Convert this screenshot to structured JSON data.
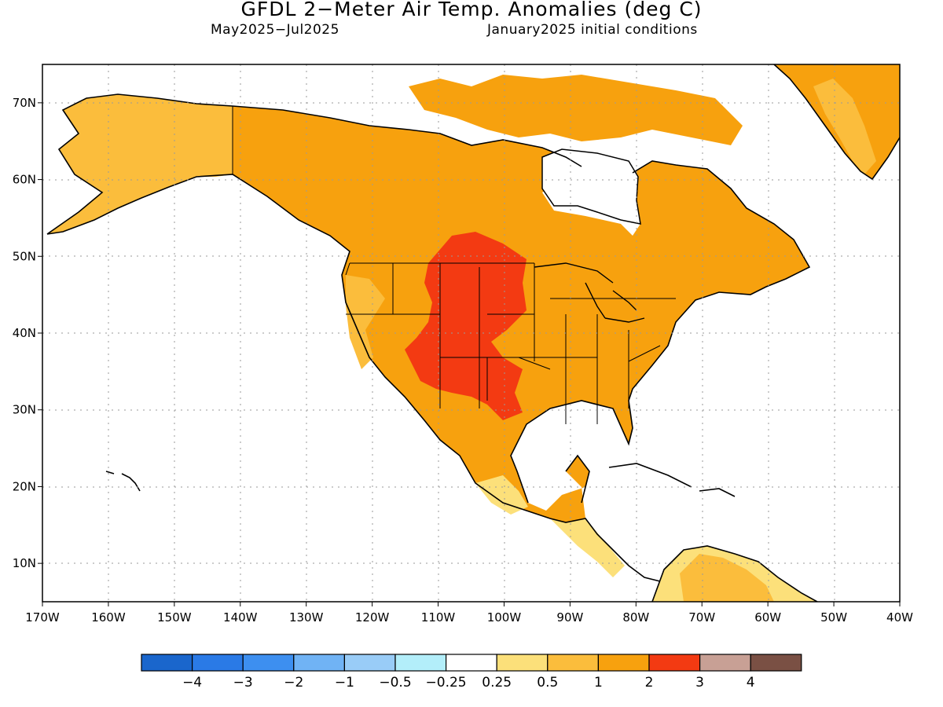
{
  "title": "GFDL 2−Meter Air Temp. Anomalies (deg C)",
  "subtitle_left": "May2025−Jul2025",
  "subtitle_right": "January2025 initial conditions",
  "lat_labels": [
    "70N",
    "60N",
    "50N",
    "40N",
    "30N",
    "20N",
    "10N"
  ],
  "lat_values": [
    70,
    60,
    50,
    40,
    30,
    20,
    10
  ],
  "lon_labels": [
    "170W",
    "160W",
    "150W",
    "140W",
    "130W",
    "120W",
    "110W",
    "100W",
    "90W",
    "80W",
    "70W",
    "60W",
    "50W",
    "40W"
  ],
  "lon_values": [
    -170,
    -160,
    -150,
    -140,
    -130,
    -120,
    -110,
    -100,
    -90,
    -80,
    -70,
    -60,
    -50,
    -40
  ],
  "map_extent": {
    "lon": [
      -170,
      -40
    ],
    "lat": [
      5,
      75
    ]
  },
  "colorbar": {
    "colors": [
      "#1a66cc",
      "#2a7ae6",
      "#3d8ff0",
      "#70b3f5",
      "#99ccf7",
      "#b3eefa",
      "#ffffff",
      "#fce07a",
      "#fbbd3c",
      "#f7a10e",
      "#f33a12",
      "#c8a095",
      "#7a5044"
    ],
    "labels": [
      "−4",
      "−3",
      "−2",
      "−1",
      "−0.5",
      "−0.25",
      "0.25",
      "0.5",
      "1",
      "2",
      "3",
      "4"
    ]
  },
  "anomaly_colors": {
    "light": "#fce07a",
    "medium": "#fbbd3c",
    "strong": "#f7a10e",
    "very_strong": "#f33a12"
  }
}
